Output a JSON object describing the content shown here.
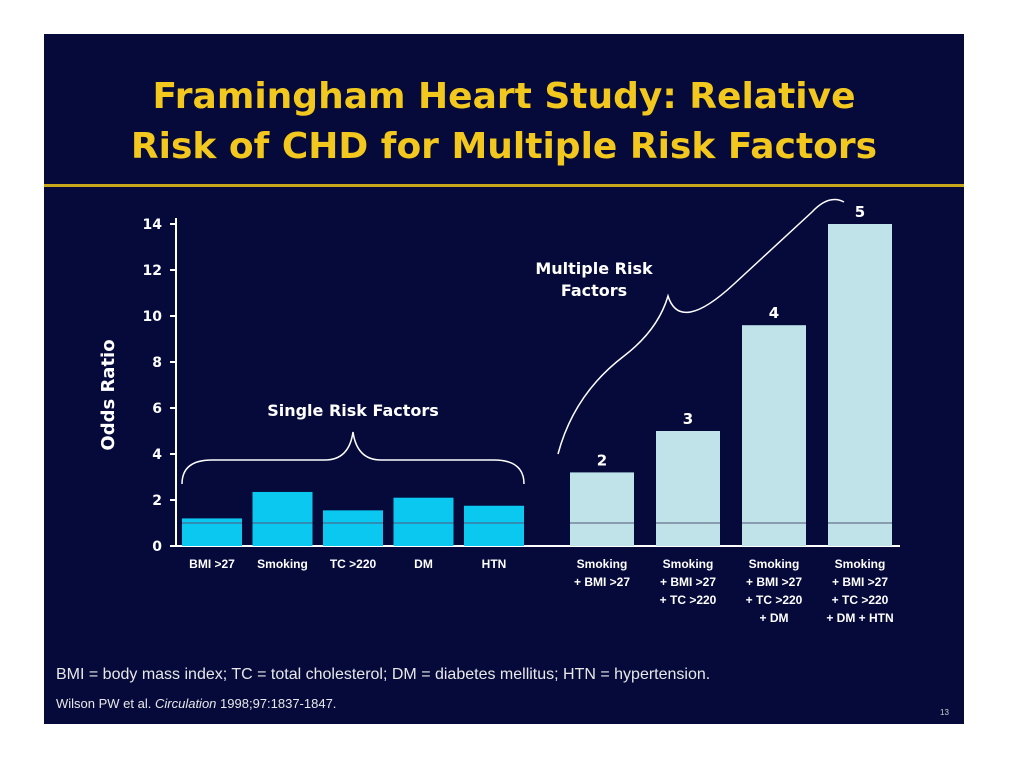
{
  "slide": {
    "title_line1": "Framingham Heart Study: Relative",
    "title_line2": "Risk of CHD for Multiple Risk Factors",
    "footnote": "BMI = body mass index; TC = total cholesterol; DM = diabetes mellitus; HTN = hypertension.",
    "citation_authors": "Wilson PW et al.",
    "citation_journal": "Circulation",
    "citation_details": "1998;97:1837-1847.",
    "slide_number": "13"
  },
  "chart_data": {
    "type": "bar",
    "ylabel": "Odds Ratio",
    "ylim": [
      0,
      14
    ],
    "yticks": [
      "0",
      "2",
      "4",
      "6",
      "8",
      "10",
      "12",
      "14"
    ],
    "reference_line": 1,
    "groups": [
      {
        "label": "Single Risk Factors",
        "color": "#0ac8f0",
        "bars": [
          {
            "label": [
              "BMI >27"
            ],
            "value": 1.2
          },
          {
            "label": [
              "Smoking"
            ],
            "value": 2.35
          },
          {
            "label": [
              "TC >220"
            ],
            "value": 1.55
          },
          {
            "label": [
              "DM"
            ],
            "value": 2.1
          },
          {
            "label": [
              "HTN"
            ],
            "value": 1.75
          }
        ]
      },
      {
        "label": "Multiple Risk Factors",
        "color": "#bfe3e8",
        "bars": [
          {
            "label": [
              "Smoking",
              "+ BMI >27"
            ],
            "value": 3.2,
            "count": "2"
          },
          {
            "label": [
              "Smoking",
              "+ BMI >27",
              "+ TC >220"
            ],
            "value": 5.0,
            "count": "3"
          },
          {
            "label": [
              "Smoking",
              "+ BMI >27",
              "+ TC >220",
              "+ DM"
            ],
            "value": 9.6,
            "count": "4"
          },
          {
            "label": [
              "Smoking",
              "+ BMI >27",
              "+ TC >220",
              "+ DM + HTN"
            ],
            "value": 14.0,
            "count": "5"
          }
        ]
      }
    ]
  }
}
